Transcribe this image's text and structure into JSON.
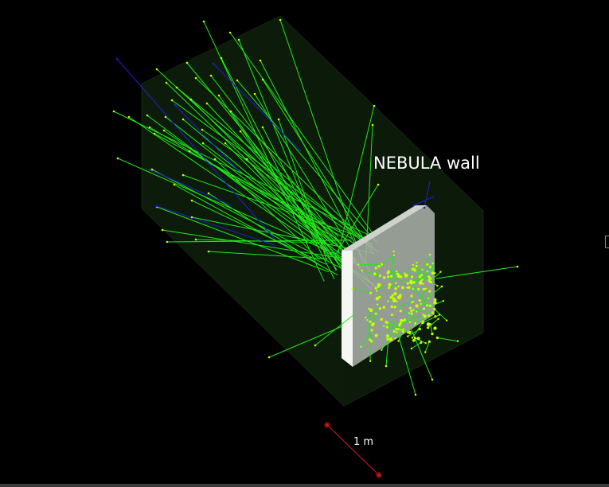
{
  "scene": {
    "label": "NEBULA wall",
    "scale_label": "1 m",
    "colors": {
      "background": "#000000",
      "volume": "#0c1a0a",
      "track_neutron": "#22e81c",
      "track_charged": "#1c22d0",
      "hit": "#c8ff00",
      "wall_face": "#a9aea7",
      "wall_side": "#f6f6f2",
      "label_text": "#ffffff",
      "scale": "#d81818"
    }
  }
}
